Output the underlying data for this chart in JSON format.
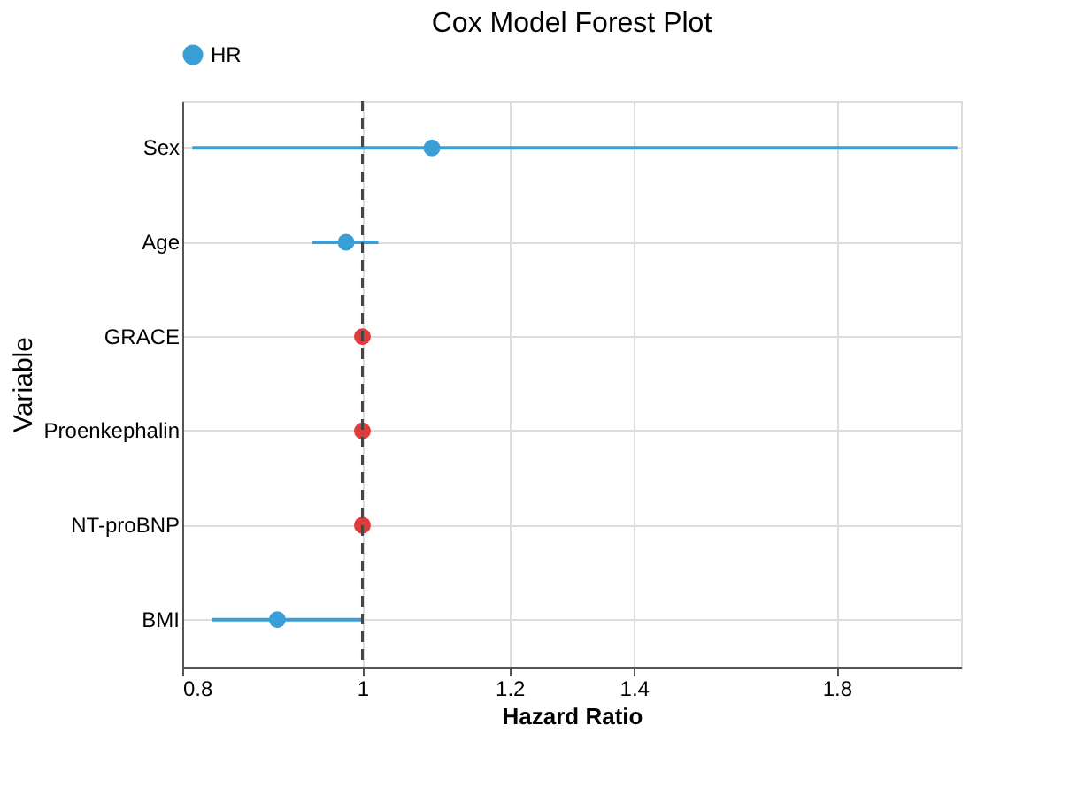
{
  "chart_data": {
    "type": "scatter",
    "title": "Cox Model Forest Plot",
    "xlabel": "Hazard Ratio",
    "ylabel": "Variable",
    "categories": [
      "Sex",
      "Age",
      "GRACE",
      "Proenkephalin",
      "NT-proBNP",
      "BMI"
    ],
    "orientation": "horizontal",
    "series": [
      {
        "name": "HR",
        "color": "#3a9fd6",
        "values": [
          1.09,
          0.98,
          null,
          null,
          null,
          0.9
        ],
        "errors": [
          [
            0.81,
            2.09
          ],
          [
            0.94,
            1.02
          ],
          null,
          null,
          null,
          [
            0.83,
            1.0
          ]
        ]
      },
      {
        "color": "#e03a3a",
        "values": [
          null,
          null,
          1.0,
          1.0,
          1.0,
          null
        ]
      }
    ],
    "xlim": [
      0.8,
      2.1
    ],
    "xticks": [
      0.8,
      1,
      1.2,
      1.4,
      1.8
    ],
    "log": "x",
    "ref_lines": [
      {
        "axis": "x",
        "value": 1,
        "line_style": "dashed",
        "color": "#444444"
      }
    ],
    "grid": true,
    "legend": "top",
    "marker": "circle"
  }
}
